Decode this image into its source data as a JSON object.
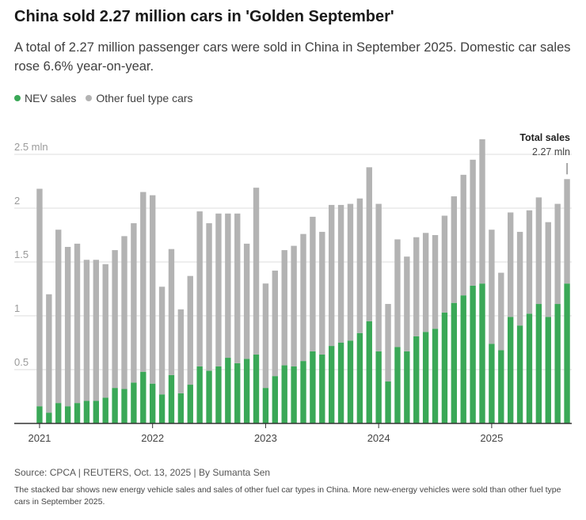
{
  "header": {
    "title": "China sold 2.27 million cars in 'Golden September'",
    "subtitle": "A total of 2.27 million passenger cars were sold in China in September 2025. Domestic car sales rose 6.6% year-on-year."
  },
  "colors": {
    "nev": "#3aa857",
    "other": "#b3b3b3",
    "grid": "#dddddd",
    "axis": "#333333",
    "tick_text": "#9a9a9a"
  },
  "chart_data": {
    "type": "bar",
    "stacked": true,
    "x_start": "2021-01",
    "categories": [
      "2021-01",
      "2021-02",
      "2021-03",
      "2021-04",
      "2021-05",
      "2021-06",
      "2021-07",
      "2021-08",
      "2021-09",
      "2021-10",
      "2021-11",
      "2021-12",
      "2022-01",
      "2022-02",
      "2022-03",
      "2022-04",
      "2022-05",
      "2022-06",
      "2022-07",
      "2022-08",
      "2022-09",
      "2022-10",
      "2022-11",
      "2022-12",
      "2023-01",
      "2023-02",
      "2023-03",
      "2023-04",
      "2023-05",
      "2023-06",
      "2023-07",
      "2023-08",
      "2023-09",
      "2023-10",
      "2023-11",
      "2023-12",
      "2024-01",
      "2024-02",
      "2024-03",
      "2024-04",
      "2024-05",
      "2024-06",
      "2024-07",
      "2024-08",
      "2024-09",
      "2024-10",
      "2024-11",
      "2024-12",
      "2025-01",
      "2025-02",
      "2025-03",
      "2025-04",
      "2025-05",
      "2025-06",
      "2025-07",
      "2025-08",
      "2025-09"
    ],
    "series": [
      {
        "name": "NEV sales",
        "values": [
          0.16,
          0.1,
          0.19,
          0.16,
          0.19,
          0.21,
          0.21,
          0.24,
          0.33,
          0.32,
          0.38,
          0.48,
          0.37,
          0.27,
          0.45,
          0.28,
          0.36,
          0.53,
          0.49,
          0.53,
          0.61,
          0.56,
          0.6,
          0.64,
          0.33,
          0.44,
          0.54,
          0.53,
          0.58,
          0.67,
          0.64,
          0.72,
          0.75,
          0.77,
          0.84,
          0.95,
          0.67,
          0.39,
          0.71,
          0.67,
          0.81,
          0.85,
          0.88,
          1.03,
          1.12,
          1.19,
          1.28,
          1.3,
          0.74,
          0.68,
          0.99,
          0.91,
          1.02,
          1.11,
          0.99,
          1.11,
          1.3
        ]
      },
      {
        "name": "Other fuel type cars",
        "values": [
          2.02,
          1.1,
          1.61,
          1.48,
          1.48,
          1.31,
          1.31,
          1.24,
          1.28,
          1.42,
          1.48,
          1.67,
          1.75,
          1.0,
          1.17,
          0.78,
          1.01,
          1.44,
          1.37,
          1.42,
          1.34,
          1.39,
          1.07,
          1.55,
          0.97,
          0.98,
          1.07,
          1.12,
          1.18,
          1.25,
          1.14,
          1.31,
          1.28,
          1.27,
          1.25,
          1.43,
          1.37,
          0.72,
          1.0,
          0.88,
          0.92,
          0.92,
          0.87,
          0.9,
          0.99,
          1.12,
          1.17,
          1.34,
          1.06,
          0.72,
          0.97,
          0.87,
          0.96,
          0.99,
          0.88,
          0.93,
          0.97
        ]
      }
    ],
    "ylim": [
      0,
      2.65
    ],
    "yticks": [
      0.5,
      1,
      1.5,
      2,
      2.5
    ],
    "ytick_labels": [
      "0.5",
      "1",
      "1.5",
      "2",
      "2.5 mln"
    ],
    "xtick_labels": [
      {
        "index": 0,
        "label": "2021"
      },
      {
        "index": 12,
        "label": "2022"
      },
      {
        "index": 24,
        "label": "2023"
      },
      {
        "index": 36,
        "label": "2024"
      },
      {
        "index": 48,
        "label": "2025"
      }
    ],
    "legend": [
      {
        "label": "NEV sales",
        "color": "#3aa857"
      },
      {
        "label": "Other fuel type cars",
        "color": "#b3b3b3"
      }
    ],
    "legend_position": "top-left",
    "grid": true,
    "annotation": {
      "index": 56,
      "title": "Total sales",
      "value_label": "2.27 mln"
    }
  },
  "footer": {
    "source": "Source: CPCA | REUTERS, Oct. 13, 2025 | By Sumanta Sen",
    "note": "The stacked bar shows new energy vehicle sales and sales of other fuel car types in China. More new-energy vehicles were sold than other fuel type cars in September 2025."
  }
}
